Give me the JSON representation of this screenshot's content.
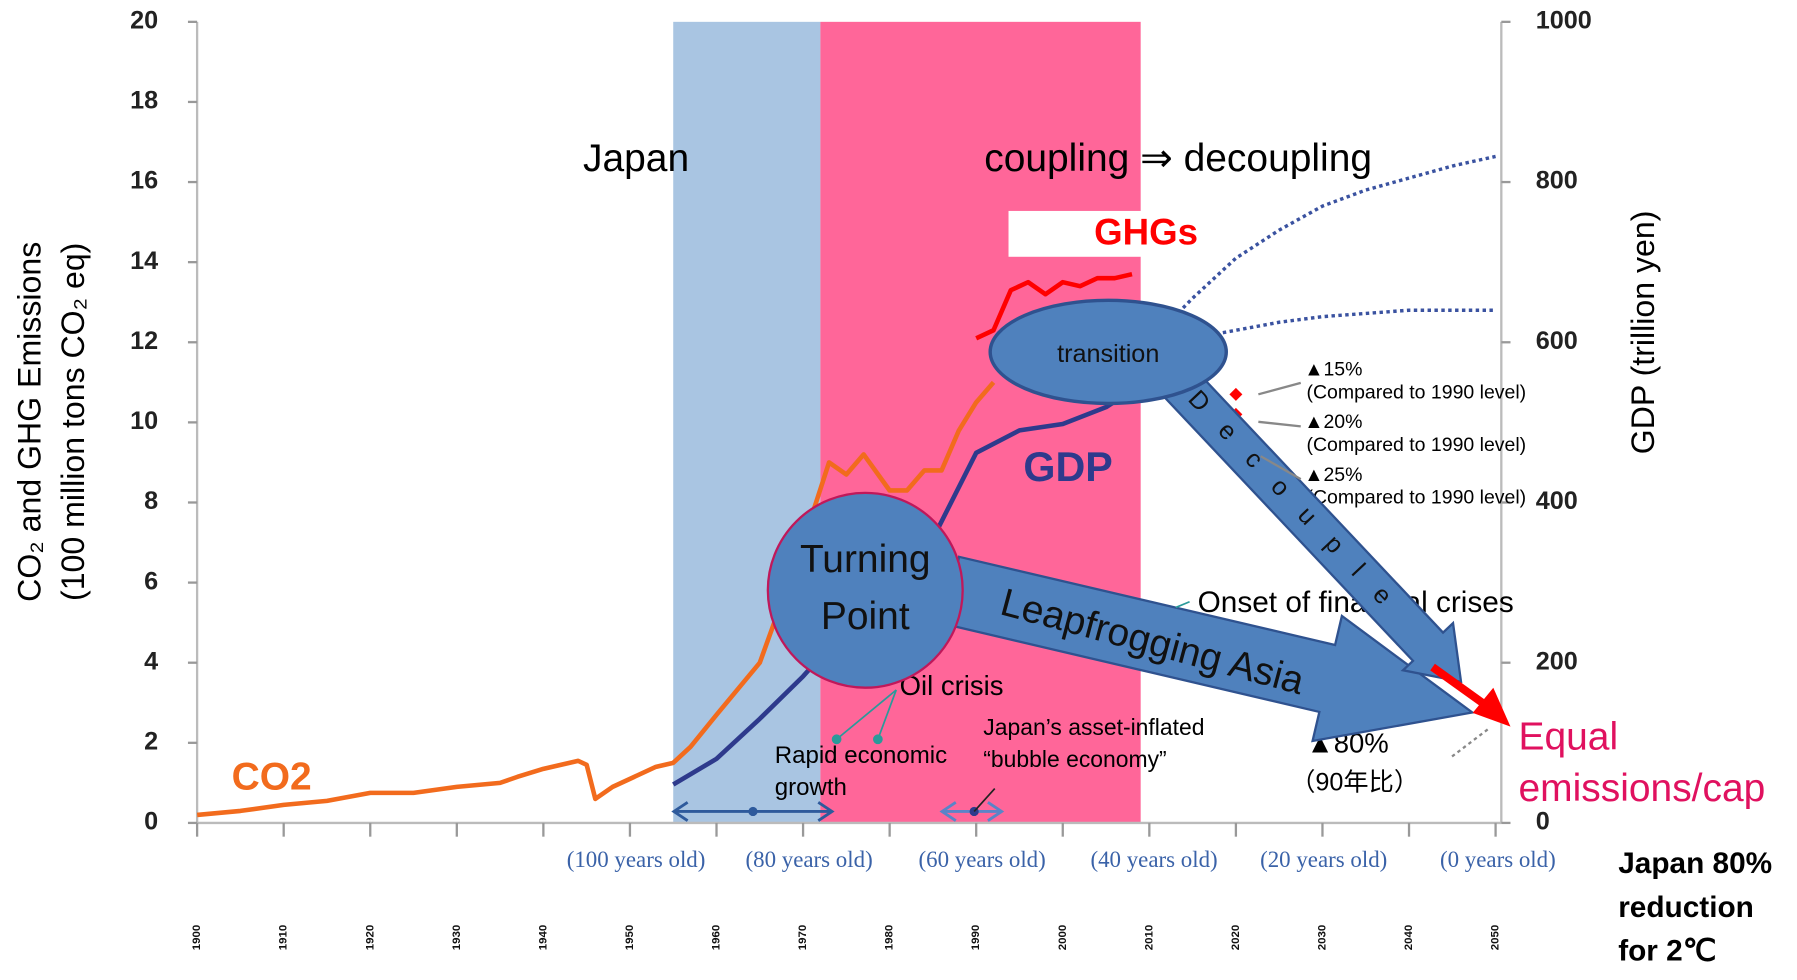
{
  "chart_data": {
    "type": "line",
    "ylabel": [
      "CO₂ and GHG Emissions",
      "(100 million tons CO₂ eq)"
    ],
    "y2label": "GDP (trillion yen)",
    "xlim": [
      1900,
      2050
    ],
    "xticks": [
      1900,
      1910,
      1920,
      1930,
      1940,
      1950,
      1960,
      1970,
      1980,
      1990,
      2000,
      2010,
      2020,
      2030,
      2040,
      2050
    ],
    "ylim": [
      0,
      20
    ],
    "yticks": [
      0,
      2,
      4,
      6,
      8,
      10,
      12,
      14,
      16,
      18,
      20
    ],
    "y2lim": [
      0,
      1000
    ],
    "y2ticks": [
      0,
      200,
      400,
      600,
      800,
      1000
    ],
    "bands": [
      {
        "x": [
          1955,
          1972
        ],
        "color": "#a9c5e2"
      },
      {
        "x": [
          1972,
          2009
        ],
        "color": "#ff6699"
      }
    ],
    "series": [
      {
        "color": "#f26b1d",
        "x": [
          1900,
          1905,
          1910,
          1915,
          1920,
          1925,
          1930,
          1935,
          1937,
          1940,
          1944,
          1945,
          1946,
          1948,
          1950,
          1953,
          1955,
          1957,
          1960,
          1965,
          1970,
          1973,
          1975,
          1977,
          1980,
          1982,
          1984,
          1986,
          1988,
          1990,
          1992
        ],
        "values": [
          0.2,
          0.3,
          0.45,
          0.55,
          0.75,
          0.75,
          0.9,
          1.0,
          1.15,
          1.35,
          1.55,
          1.45,
          0.6,
          0.9,
          1.1,
          1.4,
          1.5,
          1.9,
          2.7,
          4.0,
          7.0,
          9.0,
          8.7,
          9.2,
          8.3,
          8.3,
          8.8,
          8.8,
          9.8,
          10.5,
          11.0
        ]
      },
      {
        "color": "#ff0000",
        "x": [
          1990,
          1992,
          1994,
          1996,
          1998,
          2000,
          2002,
          2004,
          2006,
          2008
        ],
        "values": [
          12.1,
          12.3,
          13.3,
          13.5,
          13.2,
          13.5,
          13.4,
          13.6,
          13.6,
          13.7
        ]
      },
      {
        "color": "#2e3a8c",
        "axis": "y2",
        "x": [
          1955,
          1960,
          1965,
          1970,
          1973,
          1980,
          1985,
          1990,
          1995,
          2000,
          2005,
          2008
        ],
        "values": [
          48,
          80,
          130,
          183,
          219,
          305,
          355,
          462,
          490,
          498,
          519,
          540
        ]
      },
      {
        "color": "#3a52a0",
        "axis": "y2",
        "dash": true,
        "x": [
          2010,
          2015,
          2020,
          2025,
          2030,
          2035,
          2040,
          2045,
          2050
        ],
        "values": [
          600,
          655,
          705,
          740,
          770,
          790,
          805,
          820,
          832
        ]
      },
      {
        "color": "#3a52a0",
        "axis": "y2",
        "dash": true,
        "x": [
          2010,
          2015,
          2020,
          2025,
          2030,
          2040,
          2050
        ],
        "values": [
          590,
          605,
          615,
          625,
          632,
          640,
          640
        ]
      },
      {
        "color": "#ff0000",
        "marker": true,
        "x": [
          2020,
          2020
        ],
        "values": [
          10.7,
          10.2
        ]
      }
    ],
    "age_labels": [
      "(100 years old)",
      "(80 years old)",
      "(60 years old)",
      "(40 years old)",
      "(20 years old)",
      "(0 years old)"
    ],
    "annotations": {
      "japan": "Japan",
      "coupling": "coupling ⇒ decoupling",
      "ghgs": "GHGs",
      "gdp": "GDP",
      "co2": "CO2",
      "transition": "transition",
      "turning": [
        "Turning",
        "Point"
      ],
      "leapfrog": "Leapfrogging Asia",
      "decouple": "Decouple",
      "t15": [
        "▲15%",
        "(Compared to 1990 level)"
      ],
      "t20": [
        "▲20%",
        "(Compared to 1990 level)"
      ],
      "t25": [
        "▲25%",
        "(Compared to 1990 level)"
      ],
      "onset": "Onset of financial crises",
      "oil": "Oil crisis",
      "rapid": [
        "Rapid economic",
        "growth"
      ],
      "bubble": [
        "Japan’s asset-inflated",
        "“bubble economy”"
      ],
      "t80": [
        "▲80%",
        "（90年比）"
      ],
      "equal": [
        "Equal",
        "emissions/cap"
      ],
      "japan80": [
        "Japan 80%",
        "reduction",
        "for 2℃"
      ]
    }
  }
}
